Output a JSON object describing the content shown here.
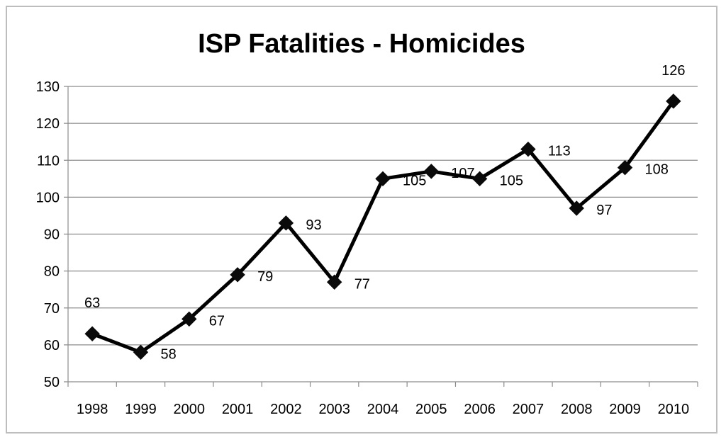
{
  "chart_data": {
    "type": "line",
    "title": "ISP Fatalities - Homicides",
    "xlabel": "",
    "ylabel": "",
    "categories": [
      "1998",
      "1999",
      "2000",
      "2001",
      "2002",
      "2003",
      "2004",
      "2005",
      "2006",
      "2007",
      "2008",
      "2009",
      "2010"
    ],
    "series": [
      {
        "values": [
          63,
          58,
          67,
          79,
          93,
          77,
          105,
          107,
          105,
          113,
          97,
          108,
          126
        ]
      }
    ],
    "ylim": [
      50,
      130
    ],
    "yticks": [
      50,
      60,
      70,
      80,
      90,
      100,
      110,
      120,
      130
    ],
    "grid": true,
    "legend": "none",
    "line_color": "#000000",
    "marker": "diamond"
  }
}
